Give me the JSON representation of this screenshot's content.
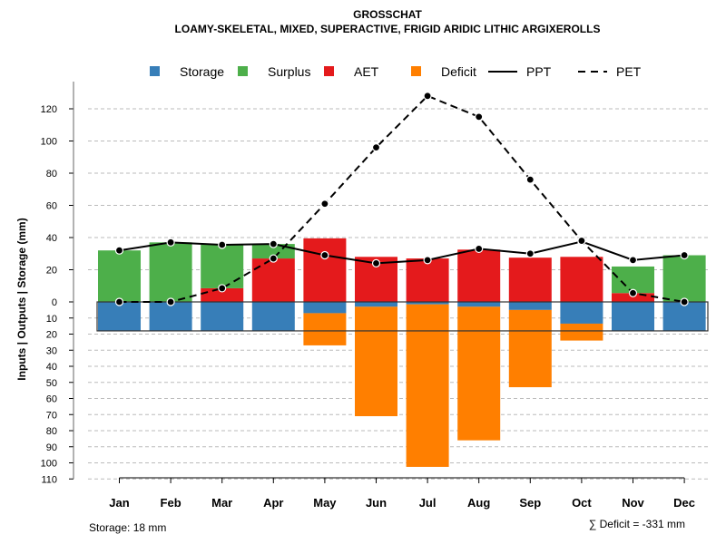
{
  "chart_data": {
    "type": "bar",
    "title": "GROSSCHAT",
    "subtitle": "LOAMY-SKELETAL, MIXED, SUPERACTIVE, FRIGID ARIDIC LITHIC ARGIXEROLLS",
    "ylabel": "Inputs | Outputs | Storage    (mm)",
    "categories": [
      "Jan",
      "Feb",
      "Mar",
      "Apr",
      "May",
      "Jun",
      "Jul",
      "Aug",
      "Sep",
      "Oct",
      "Nov",
      "Dec"
    ],
    "ylim": [
      -110,
      130
    ],
    "yticks_pos": [
      0,
      20,
      40,
      60,
      80,
      100,
      120
    ],
    "yticks_neg": [
      10,
      20,
      30,
      40,
      50,
      60,
      70,
      80,
      90,
      100,
      110
    ],
    "legend": [
      "Storage",
      "Surplus",
      "AET",
      "Deficit",
      "PPT",
      "PET"
    ],
    "legend_position": "top",
    "colors": {
      "Storage": "#377EB8",
      "Surplus": "#4DAF4A",
      "AET": "#E41A1C",
      "Deficit": "#FF7F00"
    },
    "series": [
      {
        "name": "PPT",
        "values": [
          32,
          37,
          35.5,
          36,
          29,
          24,
          26,
          33,
          30,
          37.5,
          26,
          29
        ]
      },
      {
        "name": "PET",
        "values": [
          0,
          0,
          8.5,
          27,
          61,
          96,
          128,
          115,
          76,
          38,
          5.5,
          0
        ]
      },
      {
        "name": "AET",
        "values": [
          0,
          0,
          8.5,
          27,
          39.5,
          28,
          27,
          32.5,
          27.5,
          28,
          5.5,
          0
        ]
      },
      {
        "name": "Surplus",
        "values": [
          32,
          37,
          27,
          9,
          0,
          0,
          0,
          0,
          0,
          0,
          16.5,
          29
        ]
      },
      {
        "name": "Storage",
        "values": [
          18,
          18,
          18,
          18,
          7,
          3,
          1.5,
          3,
          5,
          13.5,
          18,
          18
        ]
      },
      {
        "name": "Deficit",
        "values": [
          0,
          0,
          0,
          0,
          20,
          68,
          101,
          83,
          48,
          10.5,
          0,
          0
        ]
      }
    ],
    "storage_capacity": 18,
    "footer_left": "Storage: 18 mm",
    "footer_right": "∑ Deficit = -331 mm"
  }
}
